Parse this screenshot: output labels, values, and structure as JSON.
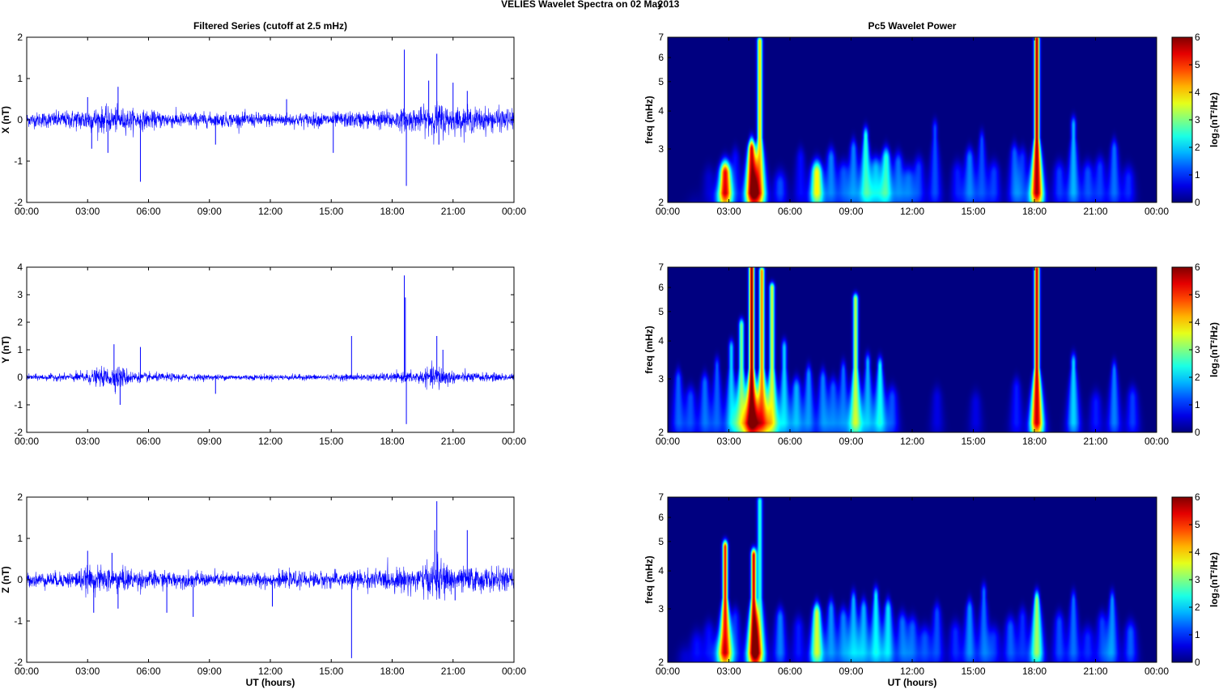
{
  "figure": {
    "title_left": "VELIES Wavelet Spectra on 02 May",
    "title_right": "2013"
  },
  "colors": {
    "series": "#0000ff",
    "axis": "#000000",
    "colormap": "jet",
    "background_low": "#00008f"
  },
  "chart_data": [
    {
      "type": "line",
      "title": "Filtered Series (cutoff at 2.5 mHz)",
      "xlabel": "",
      "ylabel": "X (nT)",
      "xticks": [
        "00:00",
        "03:00",
        "06:00",
        "09:00",
        "12:00",
        "15:00",
        "18:00",
        "21:00",
        "00:00"
      ],
      "xlim_hours": [
        0,
        24
      ],
      "ylim": [
        -2,
        2
      ],
      "yticks": [
        -2,
        -1,
        0,
        1,
        2
      ],
      "noise_envelope": [
        [
          0,
          0.2
        ],
        [
          2,
          0.25
        ],
        [
          3,
          0.35
        ],
        [
          4.4,
          0.35
        ],
        [
          6,
          0.25
        ],
        [
          9,
          0.2
        ],
        [
          12,
          0.2
        ],
        [
          15,
          0.2
        ],
        [
          17,
          0.25
        ],
        [
          18.5,
          0.3
        ],
        [
          19.5,
          0.35
        ],
        [
          20.3,
          0.5
        ],
        [
          21,
          0.35
        ],
        [
          22,
          0.35
        ],
        [
          24,
          0.3
        ]
      ],
      "spikes": [
        [
          3.0,
          0.55
        ],
        [
          3.2,
          -0.7
        ],
        [
          4.0,
          -0.8
        ],
        [
          4.5,
          0.8
        ],
        [
          5.6,
          -1.5
        ],
        [
          9.3,
          -0.6
        ],
        [
          12.8,
          0.5
        ],
        [
          15.1,
          -0.8
        ],
        [
          18.6,
          1.7
        ],
        [
          18.7,
          -1.6
        ],
        [
          19.8,
          0.95
        ],
        [
          20.2,
          1.6
        ],
        [
          20.3,
          -0.6
        ],
        [
          21.0,
          0.9
        ],
        [
          21.7,
          0.7
        ]
      ]
    },
    {
      "type": "heatmap",
      "title": "Pc5 Wavelet Power",
      "xlabel": "",
      "ylabel": "freq (mHz)",
      "xticks": [
        "00:00",
        "03:00",
        "06:00",
        "09:00",
        "12:00",
        "15:00",
        "18:00",
        "21:00",
        "00:00"
      ],
      "xlim_hours": [
        0,
        24
      ],
      "ylim_mHz": [
        2,
        7
      ],
      "y_scale": "log",
      "yticks": [
        2,
        3,
        4,
        5,
        6,
        7
      ],
      "colorbar": {
        "label": "log₂(nT²/Hz)",
        "ticks": [
          0,
          1,
          2,
          3,
          4,
          5,
          6
        ],
        "range": [
          0,
          6
        ]
      },
      "blobs": [
        [
          0.8,
          0.5,
          1.6
        ],
        [
          1.3,
          0.6,
          1.8
        ],
        [
          2.0,
          0.5,
          2.4
        ],
        [
          2.5,
          0.6,
          2.0
        ],
        [
          2.8,
          5.3,
          2.5
        ],
        [
          3.3,
          0.8,
          2.8
        ],
        [
          4.1,
          5.5,
          3.0
        ],
        [
          4.5,
          4.0,
          6.8
        ],
        [
          5.5,
          1.2,
          2.3
        ],
        [
          6.5,
          0.8,
          2.8
        ],
        [
          7.3,
          3.8,
          2.5
        ],
        [
          8.0,
          1.5,
          2.8
        ],
        [
          8.6,
          1.2,
          2.5
        ],
        [
          9.1,
          1.5,
          3.0
        ],
        [
          9.7,
          2.5,
          3.3
        ],
        [
          10.2,
          1.8,
          2.6
        ],
        [
          10.7,
          2.5,
          2.8
        ],
        [
          11.3,
          1.4,
          2.7
        ],
        [
          11.8,
          1.3,
          2.4
        ],
        [
          12.3,
          1.1,
          2.6
        ],
        [
          13.1,
          1.2,
          3.5
        ],
        [
          14.2,
          0.9,
          2.5
        ],
        [
          14.8,
          1.5,
          2.8
        ],
        [
          15.4,
          1.2,
          3.2
        ],
        [
          16.0,
          1.1,
          2.5
        ],
        [
          17.0,
          1.3,
          2.9
        ],
        [
          17.4,
          1.0,
          2.8
        ],
        [
          18.1,
          5.8,
          6.9
        ],
        [
          19.2,
          1.1,
          2.5
        ],
        [
          19.9,
          1.8,
          3.6
        ],
        [
          20.6,
          1.2,
          2.5
        ],
        [
          21.2,
          1.1,
          2.6
        ],
        [
          21.9,
          1.4,
          3.0
        ],
        [
          22.6,
          1.0,
          2.4
        ]
      ]
    },
    {
      "type": "line",
      "title": "",
      "xlabel": "",
      "ylabel": "Y (nT)",
      "xticks": [
        "00:00",
        "03:00",
        "06:00",
        "09:00",
        "12:00",
        "15:00",
        "18:00",
        "21:00",
        "00:00"
      ],
      "xlim_hours": [
        0,
        24
      ],
      "ylim": [
        -2,
        4
      ],
      "yticks": [
        -2,
        -1,
        0,
        1,
        2,
        3,
        4
      ],
      "noise_envelope": [
        [
          0,
          0.12
        ],
        [
          2,
          0.15
        ],
        [
          3.5,
          0.35
        ],
        [
          4.5,
          0.5
        ],
        [
          5.5,
          0.2
        ],
        [
          9,
          0.12
        ],
        [
          12,
          0.12
        ],
        [
          15,
          0.12
        ],
        [
          17,
          0.15
        ],
        [
          18.5,
          0.2
        ],
        [
          19.5,
          0.3
        ],
        [
          20.3,
          0.55
        ],
        [
          21,
          0.25
        ],
        [
          22,
          0.2
        ],
        [
          24,
          0.15
        ]
      ],
      "spikes": [
        [
          4.3,
          1.2
        ],
        [
          4.6,
          -1.0
        ],
        [
          5.6,
          1.1
        ],
        [
          9.3,
          -0.6
        ],
        [
          16.0,
          1.5
        ],
        [
          18.6,
          3.7
        ],
        [
          18.65,
          2.9
        ],
        [
          18.7,
          -1.7
        ],
        [
          20.2,
          1.5
        ],
        [
          20.5,
          1.0
        ]
      ]
    },
    {
      "type": "heatmap",
      "title": "",
      "xlabel": "",
      "ylabel": "freq (mHz)",
      "xticks": [
        "00:00",
        "03:00",
        "06:00",
        "09:00",
        "12:00",
        "15:00",
        "18:00",
        "21:00",
        "00:00"
      ],
      "xlim_hours": [
        0,
        24
      ],
      "ylim_mHz": [
        2,
        7
      ],
      "y_scale": "log",
      "yticks": [
        2,
        3,
        4,
        5,
        6,
        7
      ],
      "colorbar": {
        "label": "log₂(nT²/Hz)",
        "ticks": [
          0,
          1,
          2,
          3,
          4,
          5,
          6
        ],
        "range": [
          0,
          6
        ]
      },
      "blobs": [
        [
          0.5,
          1.3,
          3.0
        ],
        [
          1.1,
          1.2,
          2.6
        ],
        [
          1.8,
          1.4,
          2.9
        ],
        [
          2.4,
          1.3,
          3.3
        ],
        [
          3.1,
          2.0,
          3.8
        ],
        [
          3.6,
          3.0,
          4.5
        ],
        [
          4.1,
          6.0,
          7.0
        ],
        [
          4.6,
          4.5,
          6.8
        ],
        [
          5.1,
          3.5,
          6.0
        ],
        [
          5.7,
          2.0,
          3.8
        ],
        [
          6.3,
          1.8,
          2.8
        ],
        [
          6.9,
          1.6,
          3.1
        ],
        [
          7.6,
          1.5,
          3.0
        ],
        [
          8.1,
          1.3,
          2.8
        ],
        [
          8.6,
          1.4,
          3.2
        ],
        [
          9.2,
          3.4,
          5.5
        ],
        [
          9.8,
          1.8,
          3.4
        ],
        [
          10.4,
          2.3,
          3.3
        ],
        [
          11.0,
          1.2,
          2.6
        ],
        [
          13.2,
          0.6,
          2.6
        ],
        [
          15.1,
          0.6,
          2.5
        ],
        [
          17.1,
          0.9,
          2.8
        ],
        [
          18.1,
          5.6,
          6.9
        ],
        [
          19.9,
          2.0,
          3.4
        ],
        [
          21.0,
          0.9,
          2.5
        ],
        [
          21.9,
          1.5,
          3.2
        ],
        [
          22.8,
          1.1,
          2.6
        ]
      ]
    },
    {
      "type": "line",
      "title": "",
      "xlabel": "UT (hours)",
      "ylabel": "Z (nT)",
      "xticks": [
        "00:00",
        "03:00",
        "06:00",
        "09:00",
        "12:00",
        "15:00",
        "18:00",
        "21:00",
        "00:00"
      ],
      "xlim_hours": [
        0,
        24
      ],
      "ylim": [
        -2,
        2
      ],
      "yticks": [
        -2,
        -1,
        0,
        1,
        2
      ],
      "noise_envelope": [
        [
          0,
          0.2
        ],
        [
          2,
          0.22
        ],
        [
          3,
          0.35
        ],
        [
          4.5,
          0.35
        ],
        [
          6,
          0.25
        ],
        [
          9,
          0.2
        ],
        [
          12,
          0.22
        ],
        [
          15,
          0.22
        ],
        [
          17,
          0.28
        ],
        [
          18.5,
          0.32
        ],
        [
          19.5,
          0.4
        ],
        [
          20.3,
          0.6
        ],
        [
          21,
          0.35
        ],
        [
          22,
          0.35
        ],
        [
          24,
          0.3
        ]
      ],
      "spikes": [
        [
          3.0,
          0.7
        ],
        [
          3.3,
          -0.8
        ],
        [
          4.2,
          0.65
        ],
        [
          4.5,
          -0.7
        ],
        [
          6.9,
          -0.8
        ],
        [
          8.2,
          -0.9
        ],
        [
          12.1,
          -0.65
        ],
        [
          16.0,
          -1.9
        ],
        [
          20.2,
          1.9
        ],
        [
          20.1,
          1.2
        ],
        [
          21.7,
          1.2
        ],
        [
          21.1,
          -0.5
        ]
      ]
    },
    {
      "type": "heatmap",
      "title": "",
      "xlabel": "UT (hours)",
      "ylabel": "freq (mHz)",
      "xticks": [
        "00:00",
        "03:00",
        "06:00",
        "09:00",
        "12:00",
        "15:00",
        "18:00",
        "21:00",
        "00:00"
      ],
      "xlim_hours": [
        0,
        24
      ],
      "ylim_mHz": [
        2,
        7
      ],
      "y_scale": "log",
      "yticks": [
        2,
        3,
        4,
        5,
        6,
        7
      ],
      "colorbar": {
        "label": "log₂(nT²/Hz)",
        "ticks": [
          0,
          1,
          2,
          3,
          4,
          5,
          6
        ],
        "range": [
          0,
          6
        ]
      },
      "blobs": [
        [
          0.8,
          0.6,
          2.0
        ],
        [
          1.4,
          0.8,
          2.3
        ],
        [
          2.0,
          0.8,
          2.5
        ],
        [
          2.5,
          0.7,
          2.2
        ],
        [
          2.8,
          5.2,
          4.8
        ],
        [
          3.3,
          1.0,
          2.8
        ],
        [
          4.2,
          5.6,
          4.5
        ],
        [
          4.5,
          2.5,
          6.8
        ],
        [
          5.5,
          1.5,
          2.8
        ],
        [
          6.4,
          0.9,
          2.6
        ],
        [
          7.3,
          3.5,
          2.9
        ],
        [
          8.0,
          1.6,
          3.0
        ],
        [
          8.6,
          1.5,
          2.8
        ],
        [
          9.1,
          1.8,
          3.2
        ],
        [
          9.6,
          1.8,
          3.0
        ],
        [
          10.2,
          2.2,
          3.3
        ],
        [
          10.8,
          2.1,
          3.0
        ],
        [
          11.5,
          1.4,
          2.7
        ],
        [
          12.0,
          1.3,
          2.6
        ],
        [
          12.6,
          1.2,
          2.4
        ],
        [
          13.2,
          1.2,
          2.9
        ],
        [
          14.1,
          1.0,
          2.5
        ],
        [
          14.8,
          1.6,
          3.0
        ],
        [
          15.5,
          1.4,
          3.4
        ],
        [
          16.0,
          1.0,
          2.4
        ],
        [
          16.8,
          1.3,
          2.6
        ],
        [
          17.4,
          1.0,
          2.8
        ],
        [
          18.1,
          3.2,
          3.2
        ],
        [
          19.2,
          1.2,
          2.7
        ],
        [
          19.9,
          1.4,
          3.2
        ],
        [
          20.6,
          1.0,
          2.4
        ],
        [
          21.3,
          1.1,
          2.7
        ],
        [
          21.8,
          1.6,
          3.2
        ],
        [
          22.7,
          1.3,
          2.5
        ]
      ]
    }
  ]
}
